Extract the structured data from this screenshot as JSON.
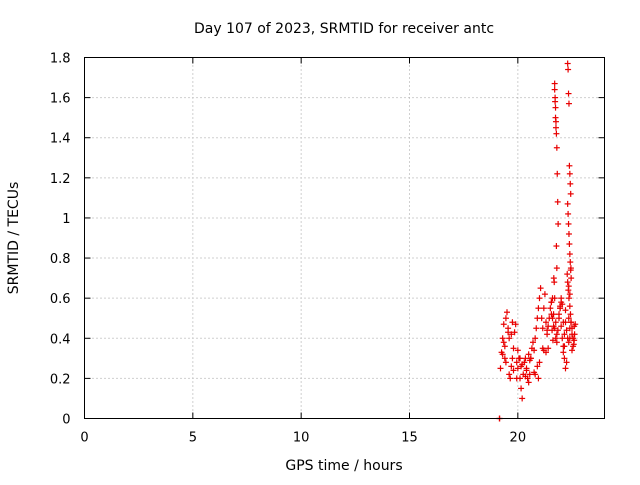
{
  "chart_data": {
    "type": "scatter",
    "title": "Day 107 of 2023, SRMTID for receiver antc",
    "xlabel": "GPS time / hours",
    "ylabel": "SRMTID / TECUs",
    "xlim": [
      0,
      24
    ],
    "ylim": [
      0,
      1.8
    ],
    "xticks": [
      0,
      5,
      10,
      15,
      20
    ],
    "xtick_labels": [
      "0",
      "5",
      "10",
      "15",
      "20"
    ],
    "yticks": [
      0,
      0.2,
      0.4,
      0.6,
      0.8,
      1.0,
      1.2,
      1.4,
      1.6,
      1.8
    ],
    "ytick_labels": [
      "0",
      "0.2",
      "0.4",
      "0.6",
      "0.8",
      "1",
      "1.2",
      "1.4",
      "1.6",
      "1.8"
    ],
    "grid": true,
    "marker": "+",
    "colors": {
      "series": "#e80000",
      "grid": "#a0a0a0",
      "axes": "#000000"
    },
    "series": [
      {
        "name": "SRMTID",
        "x": [
          19.15,
          19.16,
          19.2,
          19.25,
          19.3,
          19.35,
          19.4,
          19.45,
          19.5,
          19.55,
          19.6,
          19.65,
          19.7,
          19.75,
          19.8,
          19.85,
          19.9,
          19.95,
          20.0,
          20.05,
          20.1,
          20.15,
          20.2,
          20.25,
          20.3,
          20.35,
          20.4,
          20.45,
          20.5,
          20.55,
          20.6,
          20.65,
          20.7,
          20.75,
          20.8,
          20.85,
          20.9,
          20.95,
          21.0,
          21.05,
          21.1,
          21.15,
          21.2,
          21.25,
          21.3,
          21.35,
          21.4,
          21.45,
          21.5,
          21.55,
          21.6,
          21.65,
          21.7,
          21.75,
          21.8,
          21.85,
          21.9,
          21.95,
          22.0,
          22.05,
          22.1,
          22.15,
          22.2,
          22.25,
          22.3,
          22.35,
          22.4,
          22.45,
          22.5,
          22.55,
          22.6,
          19.3,
          19.45,
          19.6,
          19.8,
          20.0,
          20.2,
          20.4,
          20.6,
          20.8,
          21.0,
          21.2,
          21.4,
          21.6,
          21.8,
          22.0,
          22.2,
          22.4,
          19.35,
          19.55,
          19.75,
          19.95,
          20.15,
          20.35,
          20.55,
          20.75,
          20.95,
          21.15,
          21.35,
          21.55,
          21.75,
          21.95,
          22.15,
          22.35,
          22.55,
          19.4,
          19.7,
          20.1,
          20.5,
          20.9,
          21.3,
          21.7,
          22.1,
          22.5,
          21.7,
          21.72,
          21.74,
          21.76,
          21.78,
          21.8,
          21.82,
          21.84,
          21.86,
          21.7,
          21.72,
          21.74,
          21.76,
          21.78,
          21.8,
          21.66,
          21.68,
          22.3,
          22.32,
          22.34,
          22.36,
          22.38,
          22.4,
          22.42,
          22.44,
          22.3,
          22.32,
          22.34,
          22.36,
          22.38,
          22.4,
          22.42,
          22.44,
          22.46,
          22.35,
          22.4,
          22.45,
          22.28,
          22.3,
          22.33,
          22.36,
          22.4,
          22.43,
          22.46,
          22.5,
          21.55,
          21.58,
          21.62,
          21.65,
          21.9,
          21.95,
          22.0,
          22.05,
          22.1,
          22.15,
          22.2,
          22.25,
          22.6,
          22.65,
          22.62,
          22.58
        ],
        "y": [
          0.0,
          0.0,
          0.25,
          0.33,
          0.4,
          0.47,
          0.36,
          0.5,
          0.53,
          0.43,
          0.22,
          0.2,
          0.26,
          0.3,
          0.35,
          0.43,
          0.47,
          0.28,
          0.25,
          0.3,
          0.2,
          0.15,
          0.1,
          0.22,
          0.28,
          0.3,
          0.25,
          0.2,
          0.18,
          0.22,
          0.3,
          0.35,
          0.38,
          0.34,
          0.4,
          0.45,
          0.5,
          0.55,
          0.6,
          0.65,
          0.5,
          0.45,
          0.55,
          0.62,
          0.48,
          0.42,
          0.35,
          0.5,
          0.55,
          0.58,
          0.6,
          0.52,
          0.45,
          0.4,
          0.38,
          0.44,
          0.5,
          0.55,
          0.46,
          0.4,
          0.36,
          0.42,
          0.48,
          0.44,
          0.4,
          0.38,
          0.45,
          0.48,
          0.42,
          0.4,
          0.46,
          0.32,
          0.28,
          0.4,
          0.24,
          0.34,
          0.27,
          0.24,
          0.3,
          0.22,
          0.28,
          0.34,
          0.46,
          0.5,
          0.42,
          0.58,
          0.54,
          0.4,
          0.38,
          0.45,
          0.48,
          0.2,
          0.26,
          0.21,
          0.29,
          0.23,
          0.2,
          0.35,
          0.44,
          0.52,
          0.48,
          0.56,
          0.36,
          0.5,
          0.36,
          0.3,
          0.42,
          0.3,
          0.32,
          0.26,
          0.33,
          0.6,
          0.48,
          0.34,
          1.67,
          1.6,
          1.55,
          1.48,
          1.42,
          1.35,
          1.22,
          1.08,
          0.97,
          1.64,
          1.58,
          1.5,
          1.45,
          0.86,
          0.75,
          0.7,
          0.68,
          1.77,
          1.74,
          1.62,
          1.57,
          1.26,
          1.22,
          1.17,
          1.12,
          1.07,
          1.02,
          0.97,
          0.92,
          0.87,
          0.82,
          0.78,
          0.74,
          0.7,
          0.66,
          0.62,
          0.75,
          0.72,
          0.68,
          0.64,
          0.6,
          0.56,
          0.52,
          0.48,
          0.45,
          0.58,
          0.44,
          0.39,
          0.46,
          0.52,
          0.55,
          0.6,
          0.57,
          0.33,
          0.3,
          0.25,
          0.28,
          0.39,
          0.47,
          0.42,
          0.37
        ]
      }
    ]
  }
}
